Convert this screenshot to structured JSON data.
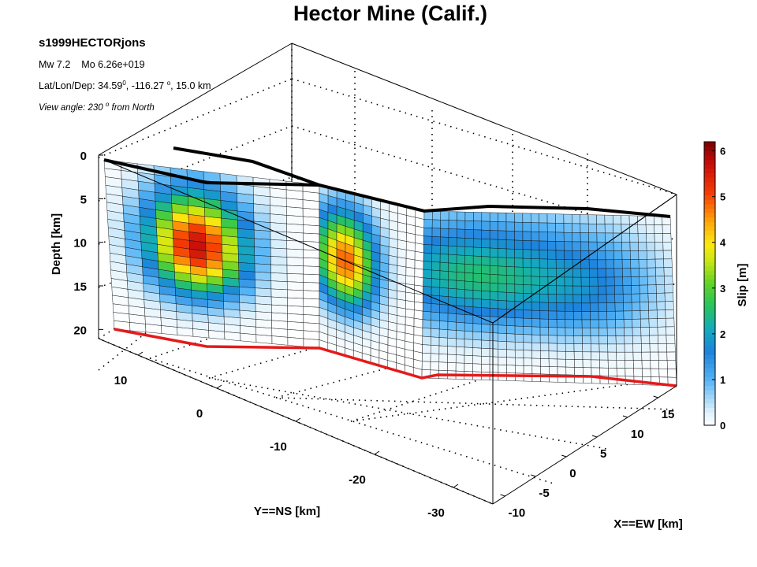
{
  "header": {
    "title": "Hector Mine (Calif.)",
    "event_id": "s1999HECTORjons",
    "mw": "Mw 7.2",
    "mo": "Mo 6.26e+019",
    "latlondep_prefix": "Lat/Lon/Dep: 34.59",
    "latlondep_deg1": "0",
    "latlondep_mid": ", -116.27",
    "latlondep_deg2": "o",
    "latlondep_suffix": ", 15.0 km",
    "view_prefix": "View angle: 230",
    "view_deg": "o",
    "view_suffix": "from North"
  },
  "chart_data": {
    "type": "surface3d",
    "subtype": "finite-fault slip model",
    "zlabel": "Depth [km]",
    "ylabel": "Y==NS [km]",
    "xlabel": "X==EW [km]",
    "depth_ticks": [
      "0",
      "5",
      "10",
      "15",
      "20"
    ],
    "depth_range": [
      0,
      20
    ],
    "ns_ticks": [
      "10",
      "0",
      "-10",
      "-20",
      "-30"
    ],
    "ns_range": [
      -35,
      15
    ],
    "ew_ticks": [
      "-10",
      "-5",
      "0",
      "5",
      "10",
      "15"
    ],
    "ew_range": [
      -12,
      18
    ],
    "colorbar": {
      "label": "Slip [m]",
      "ticks": [
        "0",
        "1",
        "2",
        "3",
        "4",
        "5",
        "6"
      ],
      "range": [
        0,
        6.2
      ],
      "colormap": "jet"
    },
    "view_azimuth_deg": 230,
    "fault_segments": [
      {
        "name": "segment-1",
        "rows": 20,
        "cols": 13,
        "peak_slip_m": 6.1,
        "peak_depth_km": 9
      },
      {
        "name": "segment-2",
        "rows": 20,
        "cols": 12,
        "peak_slip_m": 5.2,
        "peak_depth_km": 9
      },
      {
        "name": "segment-3",
        "rows": 20,
        "cols": 30,
        "peak_slip_m": 2.6,
        "peak_depth_km": 8
      }
    ],
    "grid": true,
    "colors": {
      "top_edge": "#000000",
      "bottom_edge": "#e41a1a"
    }
  }
}
